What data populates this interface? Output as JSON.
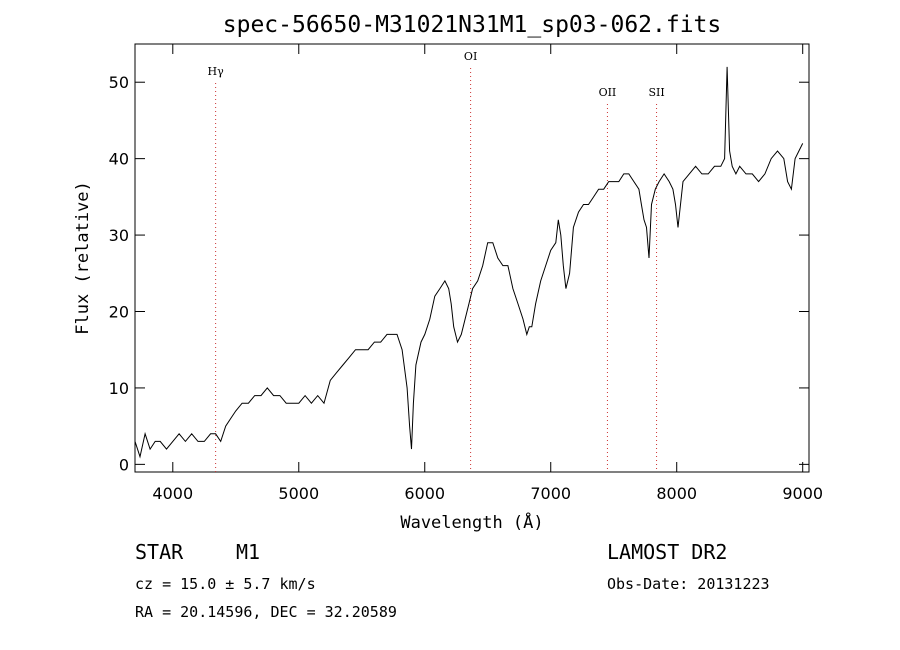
{
  "chart_data": {
    "type": "line",
    "title": "spec-56650-M31021N31M1_sp03-062.fits",
    "xlabel": "Wavelength (Å)",
    "ylabel": "Flux (relative)",
    "xlim": [
      3700,
      9050
    ],
    "ylim": [
      -1,
      55
    ],
    "x_ticks": [
      4000,
      5000,
      6000,
      7000,
      8000,
      9000
    ],
    "y_ticks": [
      0,
      10,
      20,
      30,
      40,
      50
    ],
    "grid": false,
    "line_color": "#000000",
    "marker_color": "#cc3333",
    "lines": [
      {
        "label": "Hγ",
        "wavelength": 4340
      },
      {
        "label": "OI",
        "wavelength": 6364
      },
      {
        "label": "OII",
        "wavelength": 7450
      },
      {
        "label": "SII",
        "wavelength": 7840
      }
    ],
    "series": [
      {
        "x": [
          3700,
          3740,
          3780,
          3820,
          3860,
          3900,
          3950,
          4000,
          4050,
          4100,
          4150,
          4200,
          4250,
          4300,
          4340,
          4380,
          4420,
          4460,
          4500,
          4550,
          4600,
          4650,
          4700,
          4750,
          4800,
          4850,
          4900,
          4950,
          5000,
          5050,
          5100,
          5150,
          5200,
          5250,
          5300,
          5350,
          5400,
          5450,
          5500,
          5550,
          5600,
          5650,
          5700,
          5750,
          5780,
          5820,
          5860,
          5880,
          5895,
          5910,
          5930,
          5970,
          6000,
          6040,
          6080,
          6120,
          6160,
          6190,
          6210,
          6230,
          6260,
          6290,
          6320,
          6350,
          6380,
          6420,
          6460,
          6500,
          6540,
          6580,
          6620,
          6660,
          6700,
          6740,
          6780,
          6810,
          6830,
          6850,
          6880,
          6920,
          6960,
          7000,
          7040,
          7060,
          7080,
          7100,
          7120,
          7150,
          7180,
          7220,
          7260,
          7300,
          7340,
          7380,
          7420,
          7460,
          7500,
          7540,
          7580,
          7620,
          7660,
          7700,
          7720,
          7740,
          7760,
          7780,
          7800,
          7830,
          7860,
          7900,
          7940,
          7970,
          7990,
          8010,
          8050,
          8100,
          8150,
          8200,
          8250,
          8300,
          8350,
          8380,
          8400,
          8420,
          8440,
          8470,
          8500,
          8550,
          8600,
          8650,
          8700,
          8750,
          8800,
          8850,
          8880,
          8910,
          8940,
          8970,
          9000
        ],
        "y": [
          3,
          1,
          4,
          2,
          3,
          3,
          2,
          3,
          4,
          3,
          4,
          3,
          3,
          4,
          4,
          3,
          5,
          6,
          7,
          8,
          8,
          9,
          9,
          10,
          9,
          9,
          8,
          8,
          8,
          9,
          8,
          9,
          8,
          11,
          12,
          13,
          14,
          15,
          15,
          15,
          16,
          16,
          17,
          17,
          17,
          15,
          10,
          5,
          2,
          8,
          13,
          16,
          17,
          19,
          22,
          23,
          24,
          23,
          21,
          18,
          16,
          17,
          19,
          21,
          23,
          24,
          26,
          29,
          29,
          27,
          26,
          26,
          23,
          21,
          19,
          17,
          18,
          18,
          21,
          24,
          26,
          28,
          29,
          32,
          30,
          26,
          23,
          25,
          31,
          33,
          34,
          34,
          35,
          36,
          36,
          37,
          37,
          37,
          38,
          38,
          37,
          36,
          34,
          32,
          31,
          27,
          34,
          36,
          37,
          38,
          37,
          36,
          34,
          31,
          37,
          38,
          39,
          38,
          38,
          39,
          39,
          40,
          52,
          41,
          39,
          38,
          39,
          38,
          38,
          37,
          38,
          40,
          41,
          40,
          37,
          36,
          40,
          41,
          42
        ]
      }
    ]
  },
  "info": {
    "object_class": "STAR",
    "subclass": "M1",
    "survey": "LAMOST DR2",
    "cz": "cz = 15.0 ± 5.7 km/s",
    "obs_date": "Obs-Date: 20131223",
    "coords": "RA =  20.14596, DEC =  32.20589"
  }
}
